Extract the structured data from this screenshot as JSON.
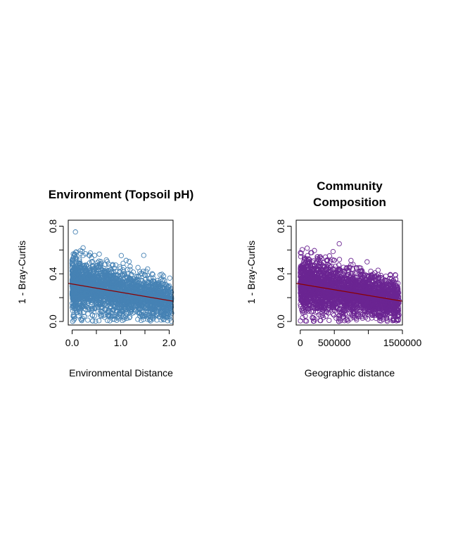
{
  "chart_data": [
    {
      "type": "scatter",
      "title": "Environment (Topsoil pH)",
      "xlabel": "Environmental Distance",
      "ylabel": "1 - Bray-Curtis",
      "xlim": [
        -0.08,
        2.08
      ],
      "ylim": [
        -0.03,
        0.85
      ],
      "x_ticks": [
        0.0,
        0.5,
        1.0,
        1.5,
        2.0
      ],
      "x_tick_labels": [
        "0.0",
        "",
        "1.0",
        "",
        "2.0"
      ],
      "y_ticks": [
        0.0,
        0.2,
        0.4,
        0.6,
        0.8
      ],
      "y_tick_labels": [
        "0.0",
        "",
        "0.4",
        "",
        "0.8"
      ],
      "point_color": "#4682B4",
      "point_shape": "open-circle",
      "n_points_shown": 2500,
      "x_range_of_points": [
        0.0,
        2.05
      ],
      "y_range_of_points": [
        0.0,
        0.83
      ],
      "trend": {
        "color": "#8B0000",
        "x": [
          -0.08,
          2.08
        ],
        "y": [
          0.32,
          0.17
        ]
      }
    },
    {
      "type": "scatter",
      "title_lines": [
        "Community",
        "Composition"
      ],
      "xlabel": "Geographic distance",
      "ylabel": "1 - Bray-Curtis",
      "xlim": [
        -60000,
        1500000
      ],
      "ylim": [
        -0.03,
        0.85
      ],
      "x_ticks": [
        0,
        500000,
        1000000,
        1500000
      ],
      "x_tick_labels": [
        "0",
        "500000",
        "",
        "1500000"
      ],
      "y_ticks": [
        0.0,
        0.2,
        0.4,
        0.6,
        0.8
      ],
      "y_tick_labels": [
        "0.0",
        "",
        "0.4",
        "",
        "0.8"
      ],
      "point_color": "#6B2592",
      "point_shape": "open-circle",
      "n_points_shown": 2800,
      "x_range_of_points": [
        0,
        1450000
      ],
      "y_range_of_points": [
        0.0,
        0.83
      ],
      "trend": {
        "color": "#8B0000",
        "x": [
          -60000,
          1500000
        ],
        "y": [
          0.32,
          0.17
        ]
      }
    }
  ]
}
